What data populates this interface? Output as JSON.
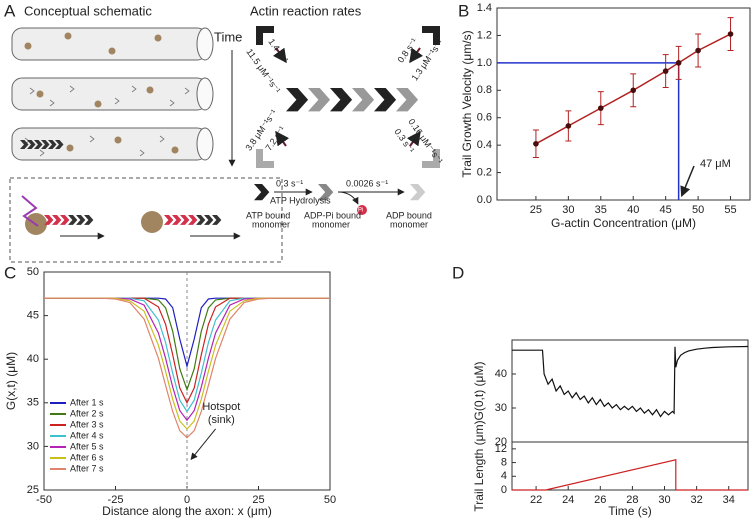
{
  "schematic": {
    "panel": "A",
    "left_title": "Conceptual schematic",
    "time": "Time",
    "right_title": "Actin reaction rates",
    "rates": [
      "1.4 s⁻¹",
      "11.5 μM⁻¹s⁻¹",
      "0.8 s⁻¹",
      "1.3 μM⁻¹s⁻¹",
      "3.8 μM⁻¹s⁻¹",
      "7.2 s⁻¹",
      "0.16 μM⁻¹s⁻¹",
      "0.3 s⁻¹"
    ],
    "hydrolysis_rate": "0.3 s⁻¹",
    "hydrolysis": "ATP Hydrolysis",
    "release_rate": "0.0026 s⁻¹",
    "pi": "Pi",
    "states": [
      [
        "ATP bound",
        "monomer"
      ],
      [
        "ADP-Pi bound",
        "monomer"
      ],
      [
        "ADP bound",
        "monomer"
      ]
    ]
  },
  "chart_data": [
    {
      "panel": "B",
      "type": "scatter",
      "x": [
        25,
        30,
        35,
        40,
        45,
        47,
        50,
        55
      ],
      "series": [
        {
          "color": "#b22222",
          "values": [
            0.41,
            0.54,
            0.67,
            0.8,
            0.94,
            1.0,
            1.09,
            1.21
          ],
          "errors": [
            0.1,
            0.11,
            0.12,
            0.12,
            0.12,
            0.12,
            0.12,
            0.12
          ]
        }
      ],
      "xlim": [
        19,
        58
      ],
      "ylim": [
        0,
        1.4
      ],
      "xticks": [
        25,
        30,
        35,
        40,
        45,
        50,
        55
      ],
      "yticks": [
        {
          "value": 0,
          "label": "0.0"
        },
        {
          "value": 0.2,
          "label": "0.2"
        },
        {
          "value": 0.4,
          "label": "0.4"
        },
        {
          "value": 0.6,
          "label": "0.6"
        },
        {
          "value": 0.8,
          "label": "0.8"
        },
        {
          "value": 1,
          "label": "1.0"
        },
        {
          "value": 1.2,
          "label": "1.2"
        },
        {
          "value": 1.4,
          "label": "1.4"
        }
      ],
      "xlabel": "G-actin Concentration (μM)",
      "ylabel": "Trail Growth Velocity (μm/s)",
      "guide": {
        "x": 47,
        "y": 1.0,
        "color": "#2233cc"
      },
      "annotation": "47 μM"
    },
    {
      "panel": "C",
      "type": "line",
      "x": [
        -50,
        -30,
        -25,
        -20,
        -15,
        -10,
        -7.5,
        -5,
        -2.5,
        0,
        2.5,
        5,
        7.5,
        10,
        15,
        20,
        25,
        30,
        50
      ],
      "series": [
        {
          "name": "After 1 s",
          "color": "#1f1fbf",
          "values": [
            47,
            47,
            47,
            47,
            47,
            47,
            46.9,
            45.9,
            42.3,
            39.2,
            42.3,
            45.9,
            46.9,
            47,
            47,
            47,
            47,
            47,
            47
          ]
        },
        {
          "name": "After 2 s",
          "color": "#3f7a12",
          "values": [
            47,
            47,
            47,
            47,
            47,
            46.8,
            45.9,
            43.2,
            38.9,
            36.5,
            38.9,
            43.2,
            45.9,
            46.8,
            47,
            47,
            47,
            47,
            47
          ]
        },
        {
          "name": "After 3 s",
          "color": "#cc2222",
          "values": [
            47,
            47,
            47,
            47,
            47,
            46.0,
            44.0,
            40.5,
            36.7,
            35,
            36.7,
            40.5,
            44.0,
            46.0,
            47,
            47,
            47,
            47,
            47
          ]
        },
        {
          "name": "After 4 s",
          "color": "#3fbfcc",
          "values": [
            47,
            47,
            47,
            47,
            46.7,
            44.5,
            41.9,
            38.4,
            35.3,
            34,
            35.3,
            38.4,
            41.9,
            44.5,
            46.7,
            47,
            47,
            47,
            47
          ]
        },
        {
          "name": "After 5 s",
          "color": "#b522b5",
          "values": [
            47,
            47,
            47,
            46.9,
            46.2,
            43.0,
            40.1,
            36.8,
            34.1,
            33,
            34.1,
            36.8,
            40.1,
            43.0,
            46.2,
            46.9,
            47,
            47,
            47
          ]
        },
        {
          "name": "After 6 s",
          "color": "#c8bf1f",
          "values": [
            47,
            47,
            47,
            46.7,
            45.5,
            41.6,
            38.6,
            35.4,
            32.9,
            32,
            32.9,
            35.4,
            38.6,
            41.6,
            45.5,
            46.7,
            47,
            47,
            47
          ]
        },
        {
          "name": "After 7 s",
          "color": "#e0836a",
          "values": [
            47,
            47,
            46.9,
            46.5,
            44.6,
            40.1,
            37.0,
            34.0,
            31.8,
            31,
            31.8,
            34.0,
            37.0,
            40.1,
            44.6,
            46.5,
            46.9,
            47,
            47
          ]
        }
      ],
      "xlim": [
        -50,
        50
      ],
      "ylim": [
        25,
        50
      ],
      "xticks": [
        -50,
        -25,
        0,
        25,
        50
      ],
      "yticks": [
        25,
        30,
        35,
        40,
        45,
        50
      ],
      "xlabel": "Distance along the axon: x (μm)",
      "ylabel": "G(x,t) (μM)",
      "legend": "lower left",
      "vline": 0,
      "annotation": [
        "Hotspot",
        "(sink)"
      ]
    },
    {
      "panel": "D",
      "type": "line",
      "x": [
        20.5,
        21.5,
        22.4,
        22.5,
        22.75,
        23,
        23.25,
        23.5,
        23.75,
        24,
        24.25,
        24.5,
        24.75,
        25,
        25.25,
        25.5,
        25.75,
        26,
        26.25,
        26.5,
        26.75,
        27,
        27.25,
        27.5,
        27.75,
        28,
        28.25,
        28.5,
        28.75,
        29,
        29.25,
        29.5,
        29.75,
        30,
        30.25,
        30.5,
        30.6,
        30.65,
        30.7,
        30.8,
        31,
        31.25,
        31.5,
        32,
        32.5,
        33,
        34,
        35.2
      ],
      "series": [
        {
          "color": "#111111",
          "values": [
            47,
            47,
            47,
            40,
            37,
            38.5,
            35,
            36.5,
            34,
            35,
            33,
            34.5,
            32.5,
            33.5,
            31.5,
            33,
            31,
            32.5,
            30.5,
            31.5,
            30,
            31,
            29.5,
            30.5,
            29.5,
            30.5,
            29,
            30,
            28.5,
            29.5,
            28,
            29.5,
            27.5,
            29,
            28,
            29,
            28.5,
            48,
            42,
            44,
            45.5,
            46.3,
            46.8,
            47.3,
            47.6,
            47.8,
            48,
            48.1
          ]
        }
      ],
      "xlim": [
        20.5,
        35.2
      ],
      "ylim": [
        20,
        50
      ],
      "yticks": [
        20,
        30,
        40
      ],
      "ylabel": "G(0,t) (μM)"
    },
    {
      "type": "line",
      "x": [
        20.5,
        22.6,
        30.7,
        30.7,
        35.2
      ],
      "series": [
        {
          "color": "#cc2222",
          "values": [
            0,
            0,
            8.8,
            0,
            0
          ]
        }
      ],
      "xlim": [
        20.5,
        35.2
      ],
      "ylim": [
        0,
        14
      ],
      "xticks": [
        22,
        24,
        26,
        28,
        30,
        32,
        34
      ],
      "yticks": [
        0,
        4,
        8,
        12
      ],
      "xlabel": "Time (s)",
      "ylabel": "Trail Length (μm)"
    }
  ]
}
